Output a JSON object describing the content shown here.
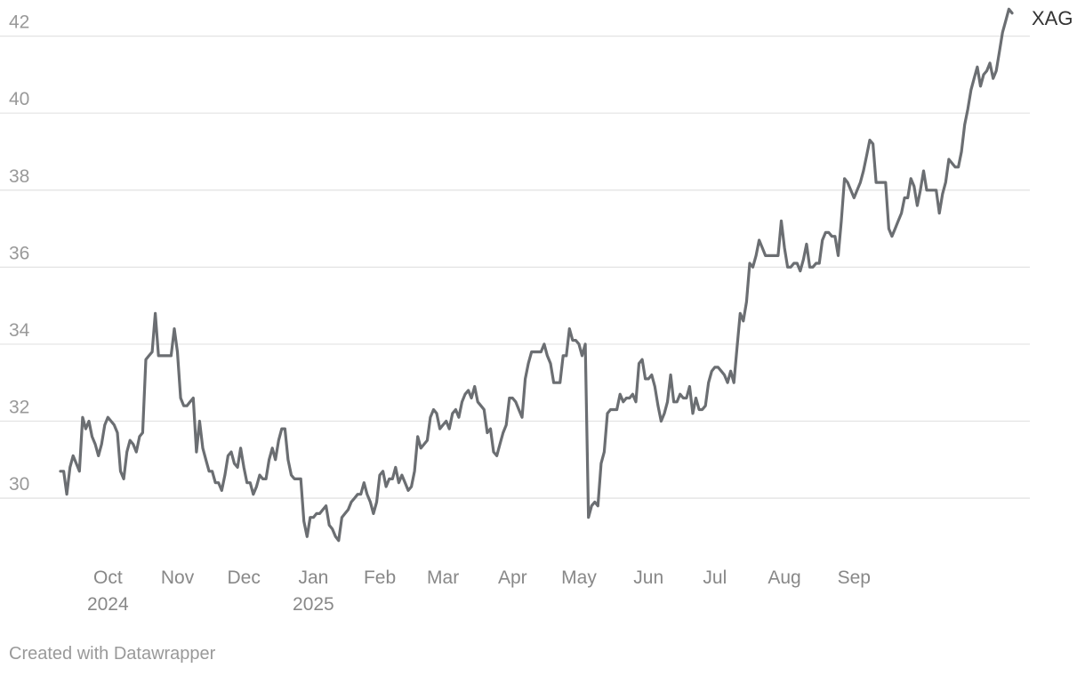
{
  "chart_data": {
    "type": "line",
    "title": "",
    "xlabel": "",
    "ylabel": "",
    "ylim": [
      28.8,
      42.8
    ],
    "yticks": [
      30,
      32,
      34,
      36,
      38,
      40,
      42
    ],
    "grid": true,
    "x_ticks": [
      {
        "label": "Oct",
        "sublabel": "2024",
        "index": 15
      },
      {
        "label": "Nov",
        "sublabel": "",
        "index": 37
      },
      {
        "label": "Dec",
        "sublabel": "",
        "index": 58
      },
      {
        "label": "Jan",
        "sublabel": "2025",
        "index": 80
      },
      {
        "label": "Feb",
        "sublabel": "",
        "index": 101
      },
      {
        "label": "Mar",
        "sublabel": "",
        "index": 121
      },
      {
        "label": "Apr",
        "sublabel": "",
        "index": 143
      },
      {
        "label": "May",
        "sublabel": "",
        "index": 164
      },
      {
        "label": "Jun",
        "sublabel": "",
        "index": 186
      },
      {
        "label": "Jul",
        "sublabel": "",
        "index": 207
      },
      {
        "label": "Aug",
        "sublabel": "",
        "index": 229
      },
      {
        "label": "Sep",
        "sublabel": "",
        "index": 251
      }
    ],
    "series": [
      {
        "name": "XAG",
        "color": "#6b6e72",
        "values": [
          30.7,
          30.7,
          30.1,
          30.8,
          31.1,
          30.9,
          30.7,
          32.1,
          31.8,
          32.0,
          31.6,
          31.4,
          31.1,
          31.4,
          31.9,
          32.1,
          32.0,
          31.9,
          31.7,
          30.7,
          30.5,
          31.2,
          31.5,
          31.4,
          31.2,
          31.6,
          31.7,
          33.6,
          33.7,
          33.8,
          34.8,
          33.7,
          33.7,
          33.7,
          33.7,
          33.7,
          34.4,
          33.8,
          32.6,
          32.4,
          32.4,
          32.5,
          32.6,
          31.2,
          32.0,
          31.3,
          31.0,
          30.7,
          30.7,
          30.4,
          30.4,
          30.2,
          30.6,
          31.1,
          31.2,
          30.9,
          30.8,
          31.3,
          30.8,
          30.4,
          30.4,
          30.1,
          30.3,
          30.6,
          30.5,
          30.5,
          31.0,
          31.3,
          31.0,
          31.5,
          31.8,
          31.8,
          31.0,
          30.6,
          30.5,
          30.5,
          30.5,
          29.4,
          29.0,
          29.5,
          29.5,
          29.6,
          29.6,
          29.7,
          29.8,
          29.3,
          29.2,
          29.0,
          28.9,
          29.5,
          29.6,
          29.7,
          29.9,
          30.0,
          30.1,
          30.1,
          30.4,
          30.1,
          29.9,
          29.6,
          29.9,
          30.6,
          30.7,
          30.3,
          30.5,
          30.5,
          30.8,
          30.4,
          30.6,
          30.4,
          30.2,
          30.3,
          30.7,
          31.6,
          31.3,
          31.4,
          31.5,
          32.1,
          32.3,
          32.2,
          31.8,
          31.9,
          32.0,
          31.8,
          32.2,
          32.3,
          32.1,
          32.5,
          32.7,
          32.8,
          32.6,
          32.9,
          32.5,
          32.4,
          32.3,
          31.7,
          31.8,
          31.2,
          31.1,
          31.4,
          31.7,
          31.9,
          32.6,
          32.6,
          32.5,
          32.3,
          32.1,
          33.1,
          33.5,
          33.8,
          33.8,
          33.8,
          33.8,
          34.0,
          33.7,
          33.5,
          33.0,
          33.0,
          33.0,
          33.7,
          33.7,
          34.4,
          34.1,
          34.1,
          34.0,
          33.7,
          34.0,
          29.5,
          29.8,
          29.9,
          29.8,
          30.9,
          31.2,
          32.2,
          32.3,
          32.3,
          32.3,
          32.7,
          32.5,
          32.6,
          32.6,
          32.7,
          32.5,
          33.5,
          33.6,
          33.1,
          33.1,
          33.2,
          32.9,
          32.4,
          32.0,
          32.2,
          32.5,
          33.2,
          32.5,
          32.5,
          32.7,
          32.6,
          32.6,
          32.9,
          32.2,
          32.6,
          32.3,
          32.3,
          32.4,
          33.0,
          33.3,
          33.4,
          33.4,
          33.3,
          33.2,
          33.0,
          33.3,
          33.0,
          33.9,
          34.8,
          34.6,
          35.1,
          36.1,
          36.0,
          36.3,
          36.7,
          36.5,
          36.3,
          36.3,
          36.3,
          36.3,
          36.3,
          37.2,
          36.5,
          36.0,
          36.0,
          36.1,
          36.1,
          35.9,
          36.2,
          36.6,
          36.0,
          36.0,
          36.1,
          36.1,
          36.7,
          36.9,
          36.9,
          36.8,
          36.8,
          36.3,
          37.2,
          38.3,
          38.2,
          38.0,
          37.8,
          38.0,
          38.2,
          38.5,
          38.9,
          39.3,
          39.2,
          38.2,
          38.2,
          38.2,
          38.2,
          37.0,
          36.8,
          37.0,
          37.2,
          37.4,
          37.8,
          37.8,
          38.3,
          38.1,
          37.6,
          38.0,
          38.5,
          38.0,
          38.0,
          38.0,
          38.0,
          37.4,
          37.9,
          38.2,
          38.8,
          38.7,
          38.6,
          38.6,
          39.0,
          39.7,
          40.1,
          40.6,
          40.9,
          41.2,
          40.7,
          41.0,
          41.1,
          41.3,
          40.9,
          41.1,
          41.6,
          42.1,
          42.4,
          42.7,
          42.6
        ]
      }
    ]
  },
  "footer": {
    "credit": "Created with Datawrapper"
  }
}
